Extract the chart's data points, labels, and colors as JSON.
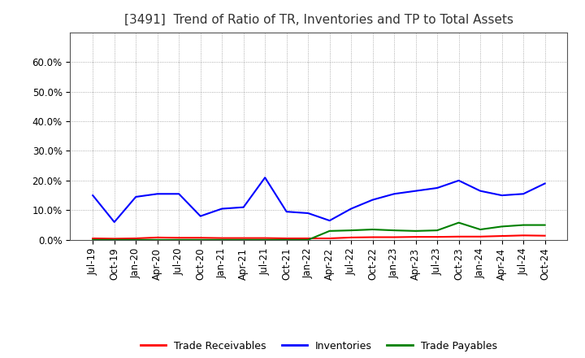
{
  "title": "[3491]  Trend of Ratio of TR, Inventories and TP to Total Assets",
  "x_labels": [
    "Jul-19",
    "Oct-19",
    "Jan-20",
    "Apr-20",
    "Jul-20",
    "Oct-20",
    "Jan-21",
    "Apr-21",
    "Jul-21",
    "Oct-21",
    "Jan-22",
    "Apr-22",
    "Jul-22",
    "Oct-22",
    "Jan-23",
    "Apr-23",
    "Jul-23",
    "Oct-23",
    "Jan-24",
    "Apr-24",
    "Jul-24",
    "Oct-24"
  ],
  "trade_receivables": [
    0.5,
    0.4,
    0.5,
    0.8,
    0.7,
    0.7,
    0.6,
    0.6,
    0.6,
    0.5,
    0.5,
    0.5,
    0.8,
    0.9,
    0.9,
    1.0,
    1.0,
    1.1,
    1.1,
    1.3,
    1.5,
    1.4
  ],
  "inventories": [
    15.0,
    6.0,
    14.5,
    15.5,
    15.5,
    8.0,
    10.5,
    11.0,
    21.0,
    9.5,
    9.0,
    6.5,
    10.5,
    13.5,
    15.5,
    16.5,
    17.5,
    20.0,
    16.5,
    15.0,
    15.5,
    19.0
  ],
  "trade_payables": [
    0.0,
    0.0,
    0.0,
    0.0,
    0.0,
    0.0,
    0.0,
    0.0,
    0.0,
    0.0,
    0.0,
    3.0,
    3.2,
    3.5,
    3.2,
    3.0,
    3.2,
    5.8,
    3.5,
    4.5,
    5.0,
    5.0
  ],
  "tr_color": "#FF0000",
  "inv_color": "#0000FF",
  "tp_color": "#008000",
  "ylim": [
    0,
    70
  ],
  "yticks": [
    0.0,
    10.0,
    20.0,
    30.0,
    40.0,
    50.0,
    60.0
  ],
  "ytick_labels": [
    "0.0%",
    "10.0%",
    "20.0%",
    "30.0%",
    "40.0%",
    "50.0%",
    "60.0%"
  ],
  "legend_labels": [
    "Trade Receivables",
    "Inventories",
    "Trade Payables"
  ],
  "background_color": "#FFFFFF",
  "plot_bg_color": "#FFFFFF",
  "grid_color": "#AAAAAA",
  "line_width": 1.5,
  "title_fontsize": 11,
  "label_fontsize": 8.5
}
